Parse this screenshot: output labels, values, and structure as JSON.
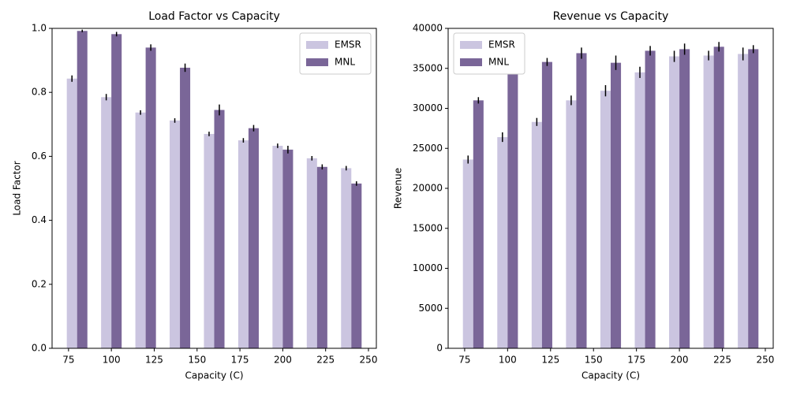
{
  "chart_data": [
    {
      "type": "bar",
      "title": "Load Factor vs Capacity",
      "xlabel": "Capacity (C)",
      "ylabel": "Load Factor",
      "x": [
        80,
        100,
        120,
        140,
        160,
        180,
        200,
        220,
        240
      ],
      "series": [
        {
          "name": "EMSR",
          "color": "#cbc5e0",
          "values": [
            0.843,
            0.785,
            0.737,
            0.712,
            0.67,
            0.65,
            0.633,
            0.594,
            0.563
          ],
          "errors": [
            0.01,
            0.01,
            0.007,
            0.007,
            0.007,
            0.007,
            0.007,
            0.007,
            0.007
          ]
        },
        {
          "name": "MNL",
          "color": "#7a6698",
          "values": [
            0.992,
            0.982,
            0.94,
            0.877,
            0.745,
            0.688,
            0.621,
            0.567,
            0.515
          ],
          "errors": [
            0.004,
            0.007,
            0.01,
            0.013,
            0.017,
            0.01,
            0.012,
            0.008,
            0.007
          ]
        }
      ],
      "xlim": [
        65.4,
        254.6
      ],
      "xticks": [
        75,
        100,
        125,
        150,
        175,
        200,
        225,
        250
      ],
      "ylim": [
        0,
        1.0
      ],
      "yticks": [
        {
          "value": 0,
          "label": "0.0"
        },
        0.2,
        0.4,
        0.6,
        0.8,
        {
          "value": 1,
          "label": "1.0"
        }
      ],
      "legend": "upper right"
    },
    {
      "type": "bar",
      "title": "Revenue vs Capacity",
      "xlabel": "Capacity (C)",
      "ylabel": "Revenue",
      "x": [
        80,
        100,
        120,
        140,
        160,
        180,
        200,
        220,
        240
      ],
      "series": [
        {
          "name": "EMSR",
          "color": "#cbc5e0",
          "values": [
            23600,
            26400,
            28300,
            31000,
            32200,
            34500,
            36500,
            36600,
            36800
          ],
          "errors": [
            500,
            600,
            500,
            600,
            700,
            700,
            700,
            600,
            800
          ]
        },
        {
          "name": "MNL",
          "color": "#7a6698",
          "values": [
            31000,
            34800,
            35800,
            36900,
            35700,
            37200,
            37400,
            37700,
            37400
          ],
          "errors": [
            400,
            400,
            500,
            700,
            900,
            600,
            700,
            600,
            500
          ]
        }
      ],
      "xlim": [
        65.4,
        254.6
      ],
      "xticks": [
        75,
        100,
        125,
        150,
        175,
        200,
        225,
        250
      ],
      "ylim": [
        0,
        40000
      ],
      "yticks": [
        0,
        5000,
        10000,
        15000,
        20000,
        25000,
        30000,
        35000,
        40000
      ],
      "legend": "upper left"
    }
  ]
}
